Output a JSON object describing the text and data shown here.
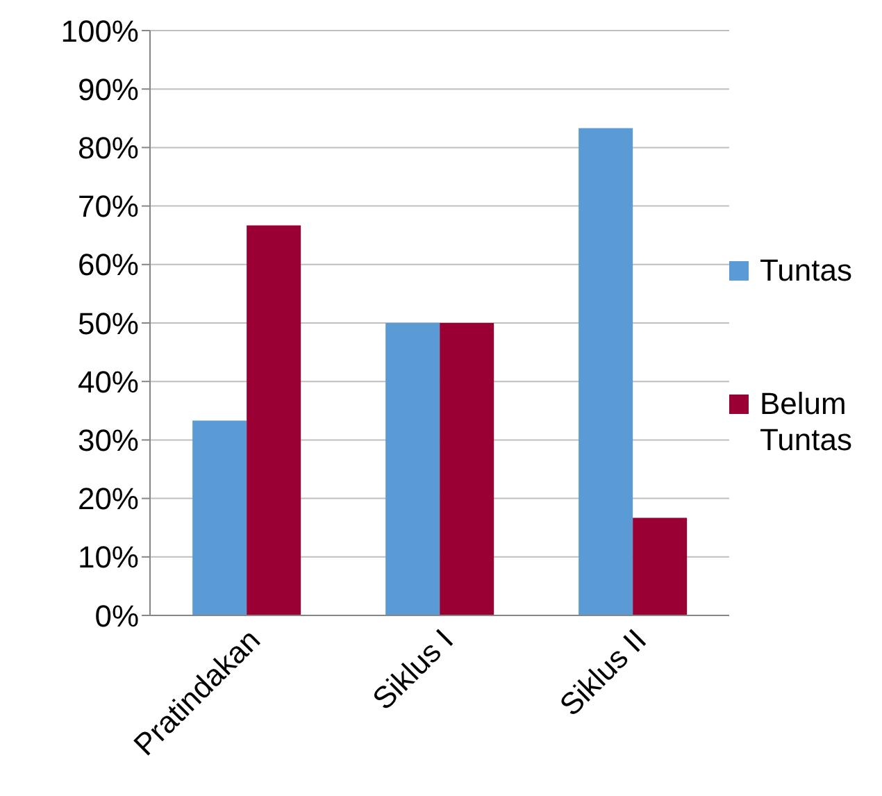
{
  "chart_data": {
    "type": "bar",
    "categories": [
      "Pratindakan",
      "Siklus I",
      "Siklus II"
    ],
    "series": [
      {
        "name": "Tuntas",
        "color": "#5b9bd5",
        "values": [
          33.3,
          50,
          83.3
        ]
      },
      {
        "name": "Belum Tuntas",
        "color": "#9b0034",
        "values": [
          66.7,
          50,
          16.7
        ]
      }
    ],
    "ylim": [
      0,
      100
    ],
    "yticks": [
      {
        "value": 0,
        "label": "0%"
      },
      {
        "value": 10,
        "label": "10%"
      },
      {
        "value": 20,
        "label": "20%"
      },
      {
        "value": 30,
        "label": "30%"
      },
      {
        "value": 40,
        "label": "40%"
      },
      {
        "value": 50,
        "label": "50%"
      },
      {
        "value": 60,
        "label": "60%"
      },
      {
        "value": 70,
        "label": "70%"
      },
      {
        "value": 80,
        "label": "80%"
      },
      {
        "value": 90,
        "label": "90%"
      },
      {
        "value": 100,
        "label": "100%"
      }
    ],
    "grid": "y",
    "legend": "right"
  }
}
